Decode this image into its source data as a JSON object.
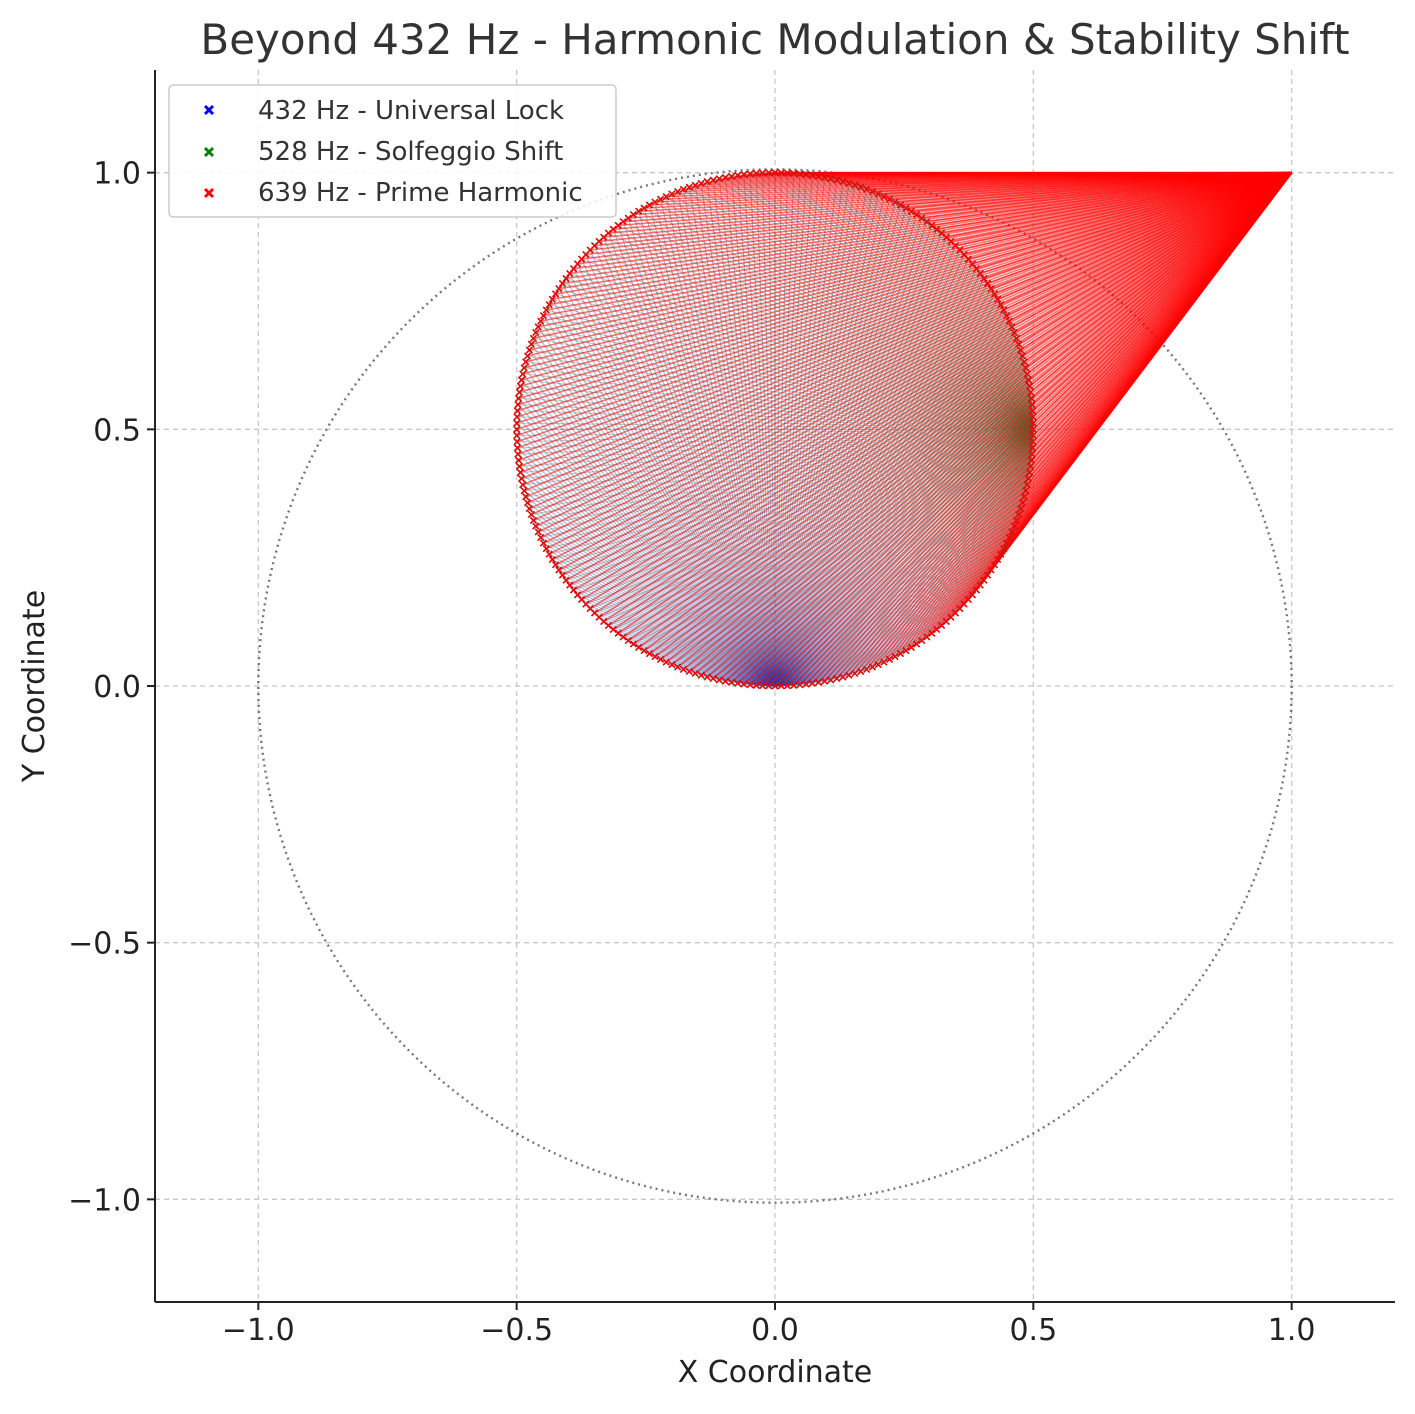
{
  "chart_data": {
    "type": "scatter",
    "title": "Beyond 432 Hz - Harmonic Modulation & Stability Shift",
    "xlabel": "X Coordinate",
    "ylabel": "Y Coordinate",
    "xlim": [
      -1.2,
      1.2
    ],
    "ylim": [
      -1.2,
      1.2
    ],
    "x_ticks": [
      -1.0,
      -0.5,
      0.0,
      0.5,
      1.0
    ],
    "y_ticks": [
      -1.0,
      -0.5,
      0.0,
      0.5,
      1.0
    ],
    "x_tick_labels": [
      "−1.0",
      "−0.5",
      "0.0",
      "0.5",
      "1.0"
    ],
    "y_tick_labels": [
      "−1.0",
      "−0.5",
      "0.0",
      "0.5",
      "1.0"
    ],
    "grid": true,
    "legend_position": "upper-left",
    "reference_circle": {
      "center": [
        0,
        0
      ],
      "radius": 1.0,
      "style": "dotted",
      "color": "#777777"
    },
    "modulation_circle": {
      "center": [
        0,
        0.5
      ],
      "radius": 0.5
    },
    "series": [
      {
        "name": "432 Hz - Universal Lock",
        "color": "#0000ff",
        "marker": "x",
        "connects_to": [
          0,
          0
        ]
      },
      {
        "name": "528 Hz - Solfeggio Shift",
        "color": "#008000",
        "marker": "x",
        "connects_to": [
          0.5,
          0.5
        ]
      },
      {
        "name": "639 Hz - Prime Harmonic",
        "color": "#ff0000",
        "marker": "x",
        "connects_to": [
          1.0,
          1.0
        ]
      }
    ]
  }
}
